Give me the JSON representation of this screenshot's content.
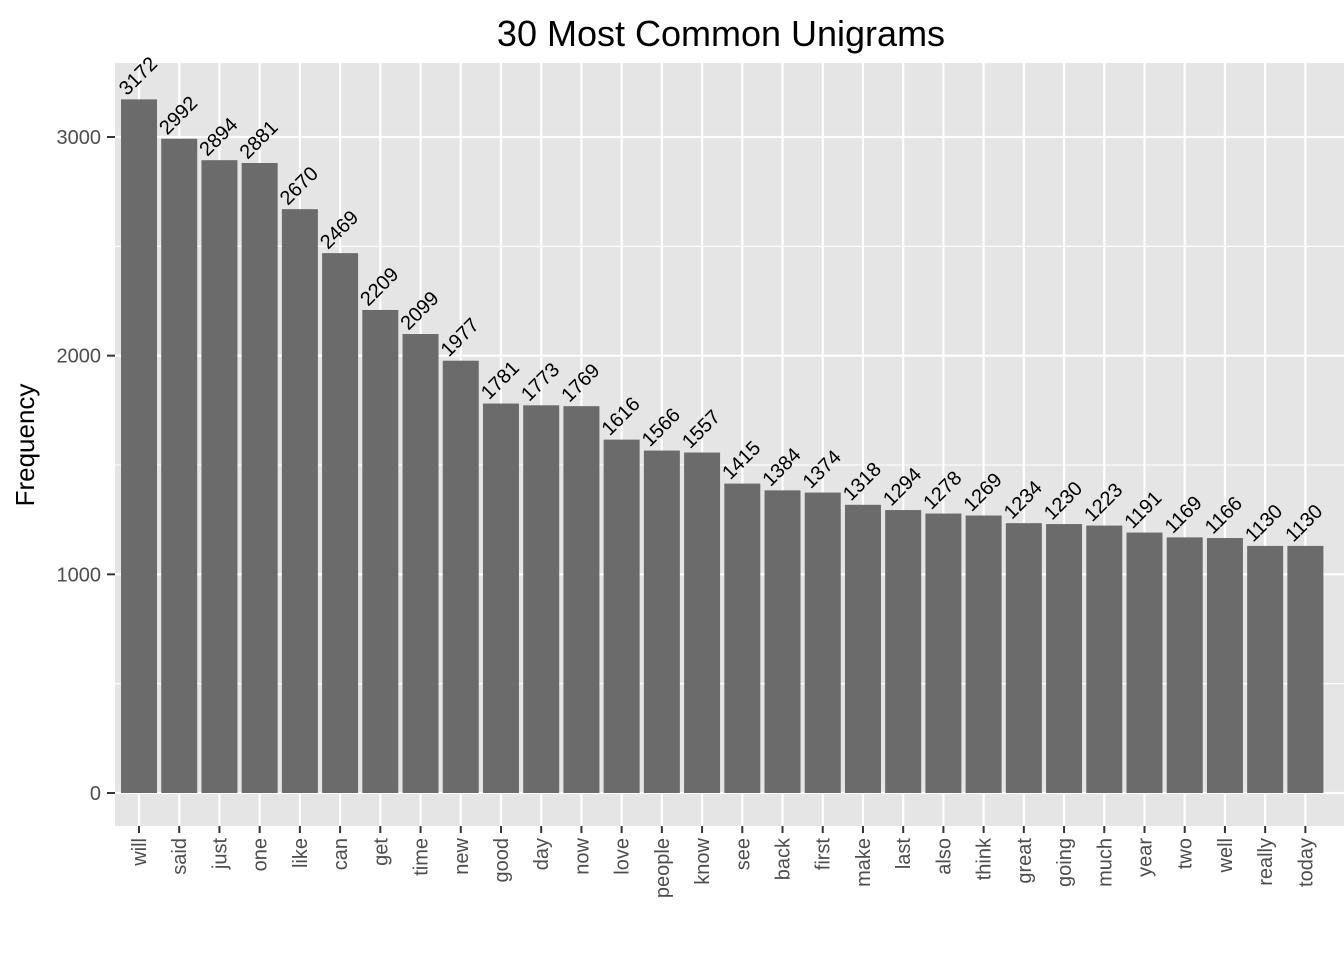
{
  "chart_data": {
    "type": "bar",
    "title": "30 Most Common Unigrams",
    "xlabel": "",
    "ylabel": "Frequency",
    "ylim": [
      -150,
      3300
    ],
    "yticks": [
      0,
      1000,
      2000,
      3000
    ],
    "grid": true,
    "bar_color": "#6b6b6b",
    "panel_color": "#e5e5e5",
    "categories": [
      "will",
      "said",
      "just",
      "one",
      "like",
      "can",
      "get",
      "time",
      "new",
      "good",
      "day",
      "now",
      "love",
      "people",
      "know",
      "see",
      "back",
      "first",
      "make",
      "last",
      "also",
      "think",
      "great",
      "going",
      "much",
      "year",
      "two",
      "well",
      "really",
      "today"
    ],
    "values": [
      3172,
      2992,
      2894,
      2881,
      2670,
      2469,
      2209,
      2099,
      1977,
      1781,
      1773,
      1769,
      1616,
      1566,
      1557,
      1415,
      1384,
      1374,
      1318,
      1294,
      1278,
      1269,
      1234,
      1230,
      1223,
      1191,
      1169,
      1166,
      1130,
      1130
    ]
  }
}
